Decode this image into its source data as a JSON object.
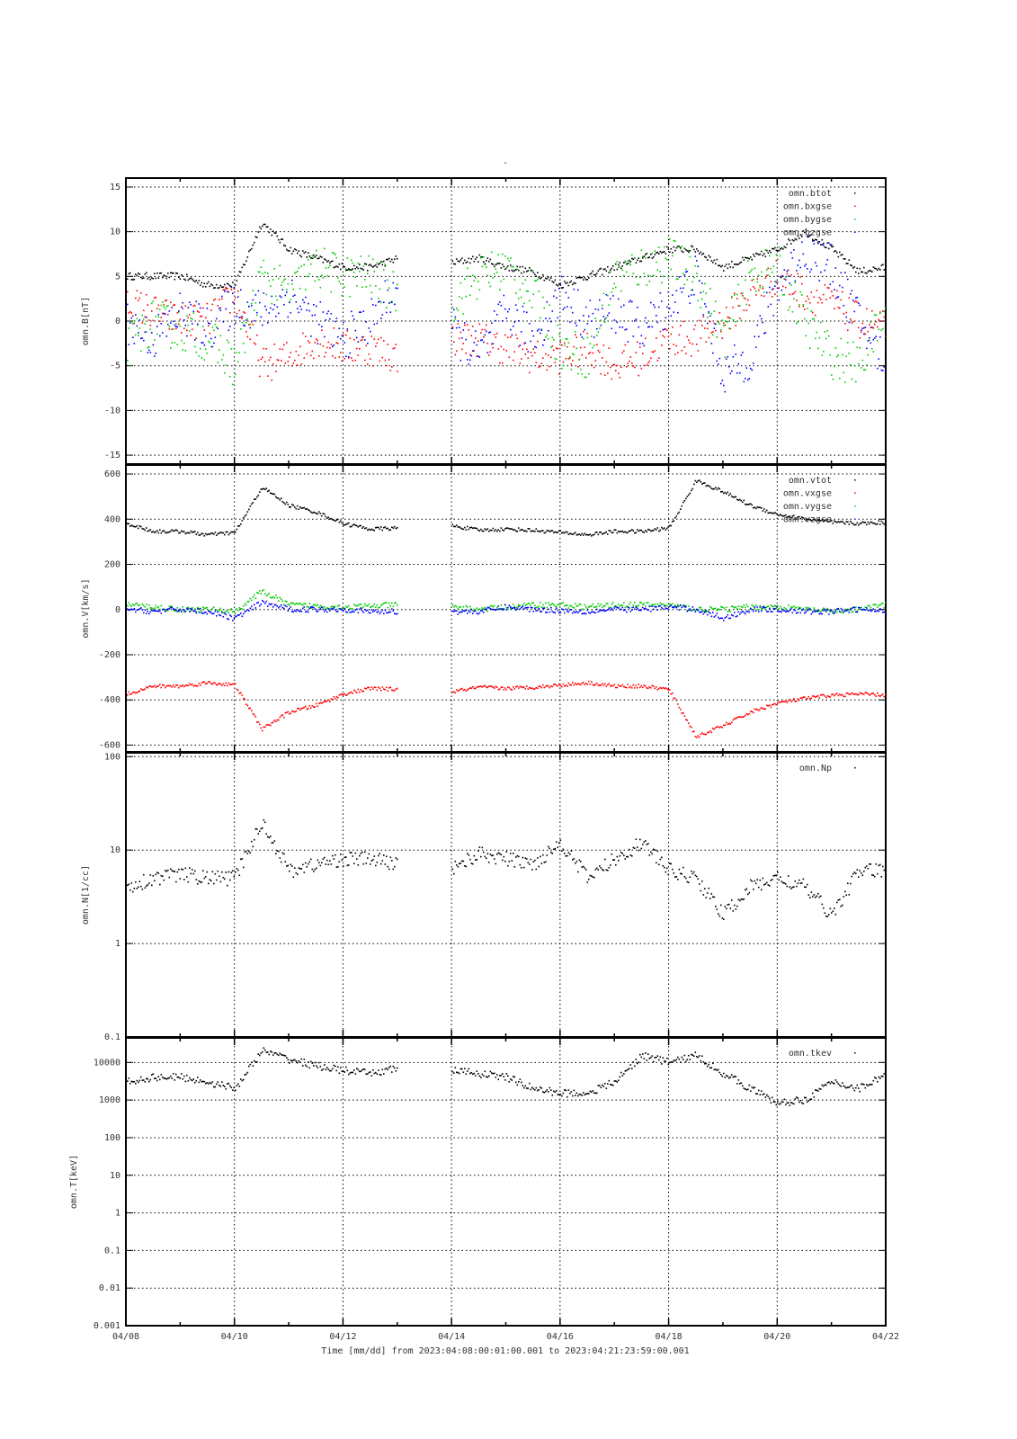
{
  "title": "-",
  "xlabel": "Time [mm/dd]  from 2023:04:08:00:01:00.001  to  2023:04:21:23:59:00.001",
  "x_ticks": [
    "04/08",
    "04/10",
    "04/12",
    "04/14",
    "04/16",
    "04/18",
    "04/20",
    "04/22"
  ],
  "chart_data": [
    {
      "type": "scatter",
      "ylabel": "omn.B[nT]",
      "yscale": "linear",
      "ylim": [
        -16,
        16
      ],
      "y_ticks": [
        15,
        10,
        5,
        0,
        -5,
        -10,
        -15
      ],
      "x_unit": "days since 04/08",
      "x": [
        0,
        0.5,
        1,
        1.5,
        2,
        2.5,
        3,
        3.5,
        4,
        4.5,
        5,
        5.5,
        6,
        6.5,
        7,
        7.5,
        8,
        8.5,
        9,
        9.5,
        10,
        10.5,
        11,
        11.5,
        12,
        12.5,
        13,
        13.5,
        14
      ],
      "series": [
        {
          "name": "omn.btot",
          "color": "#000000",
          "jitter": 0.4,
          "values": [
            5,
            5,
            5,
            4,
            4,
            11,
            8,
            7,
            6,
            6,
            7,
            null,
            6.5,
            7,
            6,
            5.5,
            4,
            5,
            6,
            7,
            8,
            8,
            6,
            7,
            8,
            10,
            8,
            5.5,
            6
          ]
        },
        {
          "name": "omn.bxgse",
          "color": "#ff0000",
          "jitter": 2.0,
          "values": [
            2,
            1,
            0,
            0,
            3,
            -5,
            -4,
            -2,
            -3,
            -3,
            -4,
            null,
            -2,
            -2,
            -3,
            -4,
            -4,
            -3,
            -5,
            -4,
            -2,
            -2,
            0,
            3,
            5,
            3,
            2,
            0,
            -1
          ]
        },
        {
          "name": "omn.bygse",
          "color": "#00cc00",
          "jitter": 2.5,
          "values": [
            -3,
            0,
            -1,
            -2,
            -5,
            5,
            3,
            6,
            5,
            5,
            3,
            null,
            2,
            5,
            6,
            3,
            -3,
            -4,
            5,
            6,
            7,
            5,
            -2,
            5,
            6,
            0,
            -4,
            -5,
            1
          ]
        },
        {
          "name": "omn.bzgse",
          "color": "#0000ff",
          "jitter": 2.5,
          "values": [
            0,
            -2,
            1,
            -1,
            2,
            1,
            3,
            0,
            -2,
            0,
            4,
            null,
            -1,
            -4,
            1,
            -2,
            3,
            0,
            1,
            -1,
            2,
            5,
            -6,
            -4,
            4,
            8,
            6,
            0,
            -5
          ]
        }
      ]
    },
    {
      "type": "scatter",
      "ylabel": "omn.V[km/s]",
      "yscale": "linear",
      "ylim": [
        -630,
        640
      ],
      "y_ticks": [
        600,
        400,
        200,
        0,
        -200,
        -400,
        -600
      ],
      "x": [
        0,
        0.5,
        1,
        1.5,
        2,
        2.5,
        3,
        3.5,
        4,
        4.5,
        5,
        5.5,
        6,
        6.5,
        7,
        7.5,
        8,
        8.5,
        9,
        9.5,
        10,
        10.5,
        11,
        11.5,
        12,
        12.5,
        13,
        13.5,
        14
      ],
      "series": [
        {
          "name": "omn.vtot",
          "color": "#000000",
          "jitter": 8,
          "values": [
            380,
            345,
            345,
            330,
            340,
            540,
            460,
            430,
            380,
            355,
            360,
            null,
            370,
            350,
            355,
            350,
            340,
            330,
            345,
            345,
            360,
            570,
            520,
            460,
            420,
            400,
            385,
            380,
            385
          ]
        },
        {
          "name": "omn.vxgse",
          "color": "#ff0000",
          "jitter": 8,
          "values": [
            -375,
            -340,
            -340,
            -325,
            -335,
            -530,
            -455,
            -425,
            -375,
            -350,
            -355,
            null,
            -365,
            -345,
            -350,
            -345,
            -335,
            -325,
            -340,
            -340,
            -355,
            -565,
            -515,
            -455,
            -415,
            -395,
            -380,
            -375,
            -380
          ]
        },
        {
          "name": "omn.vygse",
          "color": "#00cc00",
          "jitter": 12,
          "values": [
            20,
            10,
            0,
            0,
            -10,
            80,
            20,
            15,
            10,
            15,
            20,
            null,
            10,
            0,
            10,
            20,
            20,
            10,
            20,
            20,
            20,
            0,
            0,
            10,
            10,
            0,
            -10,
            0,
            20
          ]
        },
        {
          "name": "omn.vzgse",
          "color": "#0000ff",
          "jitter": 12,
          "values": [
            0,
            -10,
            0,
            -10,
            -40,
            30,
            0,
            0,
            0,
            -10,
            -10,
            null,
            -10,
            -10,
            10,
            0,
            -5,
            -10,
            0,
            0,
            10,
            0,
            -40,
            0,
            0,
            -10,
            -10,
            0,
            -10
          ]
        }
      ]
    },
    {
      "type": "scatter",
      "ylabel": "omn.N[1/cc]",
      "yscale": "log",
      "ylim": [
        0.1,
        110
      ],
      "y_ticks": [
        100,
        10,
        1,
        0.1
      ],
      "x": [
        0,
        0.5,
        1,
        1.5,
        2,
        2.5,
        3,
        3.5,
        4,
        4.5,
        5,
        5.5,
        6,
        6.5,
        7,
        7.5,
        8,
        8.5,
        9,
        9.5,
        10,
        10.5,
        11,
        11.5,
        12,
        12.5,
        13,
        13.5,
        14
      ],
      "series": [
        {
          "name": "omn.Np",
          "color": "#000000",
          "jitter": 0.08,
          "values": [
            4,
            5,
            5.5,
            5,
            5,
            20,
            6,
            7,
            8,
            8,
            7,
            null,
            6.5,
            9,
            8,
            7,
            12,
            5,
            8,
            12,
            6,
            5,
            2,
            4,
            5,
            4,
            2,
            6,
            6
          ]
        }
      ]
    },
    {
      "type": "scatter",
      "ylabel": "omn.T[keV]",
      "yscale": "log",
      "ylim": [
        0.001,
        45000
      ],
      "y_ticks": [
        10000,
        1000,
        100,
        10,
        1,
        0.1,
        0.01,
        0.001
      ],
      "x": [
        0,
        0.5,
        1,
        1.5,
        2,
        2.5,
        3,
        3.5,
        4,
        4.5,
        5,
        5.5,
        6,
        6.5,
        7,
        7.5,
        8,
        8.5,
        9,
        9.5,
        10,
        10.5,
        11,
        11.5,
        12,
        12.5,
        13,
        13.5,
        14
      ],
      "series": [
        {
          "name": "omn.tkev",
          "color": "#000000",
          "jitter": 0.1,
          "values": [
            3000,
            4000,
            4000,
            3000,
            2000,
            20000,
            12000,
            8000,
            6000,
            5000,
            7000,
            null,
            6000,
            5000,
            4000,
            2000,
            1500,
            1500,
            3000,
            15000,
            10000,
            15000,
            5000,
            2000,
            800,
            1000,
            3000,
            2000,
            5000
          ]
        }
      ]
    }
  ]
}
